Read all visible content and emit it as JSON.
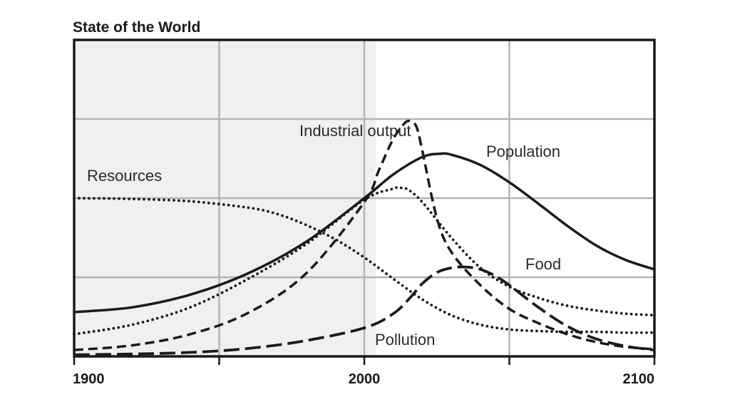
{
  "chart_data": {
    "type": "line",
    "title": "State of the World",
    "xlabel": "",
    "ylabel": "",
    "xlim": [
      1900,
      2100
    ],
    "ylim": [
      0,
      4
    ],
    "grid": true,
    "historical_shading": [
      1900,
      2004
    ],
    "x_tick_labels": [
      "1900",
      "2000",
      "2100"
    ],
    "x_tick_values": [
      1900,
      2000,
      2100
    ],
    "series": [
      {
        "name": "Population",
        "style": "solid",
        "x": [
          1900,
          1920,
          1940,
          1960,
          1980,
          2000,
          2010,
          2020,
          2026,
          2030,
          2040,
          2050,
          2060,
          2070,
          2080,
          2090,
          2100
        ],
        "y": [
          0.56,
          0.62,
          0.78,
          1.05,
          1.45,
          2.0,
          2.3,
          2.52,
          2.56,
          2.55,
          2.42,
          2.2,
          1.93,
          1.65,
          1.4,
          1.22,
          1.1
        ]
      },
      {
        "name": "Industrial output",
        "style": "dashed",
        "x": [
          1900,
          1920,
          1940,
          1960,
          1980,
          2000,
          2005,
          2010,
          2014,
          2016,
          2018,
          2020,
          2025,
          2030,
          2040,
          2050,
          2060,
          2070,
          2080,
          2090,
          2100
        ],
        "y": [
          0.08,
          0.14,
          0.28,
          0.55,
          1.05,
          1.95,
          2.35,
          2.75,
          2.95,
          2.97,
          2.9,
          2.6,
          1.75,
          1.32,
          0.9,
          0.6,
          0.42,
          0.28,
          0.18,
          0.12,
          0.09
        ]
      },
      {
        "name": "Food",
        "style": "dotted",
        "x": [
          1900,
          1920,
          1940,
          1960,
          1980,
          2000,
          2010,
          2012,
          2015,
          2020,
          2030,
          2040,
          2050,
          2060,
          2070,
          2080,
          2090,
          2100
        ],
        "y": [
          0.28,
          0.4,
          0.62,
          0.98,
          1.42,
          1.98,
          2.12,
          2.13,
          2.11,
          1.95,
          1.5,
          1.12,
          0.88,
          0.74,
          0.64,
          0.58,
          0.54,
          0.52
        ]
      },
      {
        "name": "Resources",
        "style": "dotted",
        "x": [
          1900,
          1920,
          1940,
          1960,
          1970,
          1980,
          1990,
          2000,
          2010,
          2020,
          2030,
          2040,
          2050,
          2060,
          2070,
          2080,
          2090,
          2100
        ],
        "y": [
          2.0,
          1.99,
          1.96,
          1.88,
          1.8,
          1.66,
          1.48,
          1.25,
          0.98,
          0.72,
          0.52,
          0.4,
          0.34,
          0.32,
          0.31,
          0.31,
          0.3,
          0.3
        ]
      },
      {
        "name": "Pollution",
        "style": "long-dashed",
        "x": [
          1900,
          1920,
          1940,
          1960,
          1980,
          2000,
          2010,
          2016,
          2020,
          2025,
          2030,
          2035,
          2040,
          2045,
          2050,
          2060,
          2070,
          2080,
          2090,
          2100
        ],
        "y": [
          0.02,
          0.03,
          0.05,
          0.1,
          0.2,
          0.36,
          0.54,
          0.75,
          0.92,
          1.06,
          1.12,
          1.13,
          1.1,
          1.02,
          0.9,
          0.62,
          0.38,
          0.22,
          0.13,
          0.08
        ]
      }
    ]
  }
}
